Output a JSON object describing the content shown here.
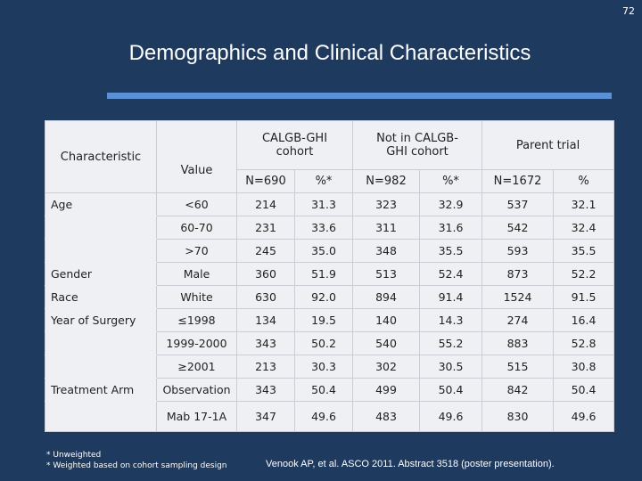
{
  "page_number": "72",
  "title": "Demographics and Clinical Characteristics",
  "table": {
    "headers": {
      "characteristic": "Characteristic",
      "value": "Value",
      "groups": [
        "CALGB-GHI cohort",
        "Not in CALGB-GHI cohort",
        "Parent trial"
      ],
      "subheaders": [
        "N=690",
        "%*",
        "N=982",
        "%*",
        "N=1672",
        "%"
      ]
    },
    "rows": [
      {
        "characteristic": "Age",
        "value": "<60",
        "cells": [
          "214",
          "31.3",
          "323",
          "32.9",
          "537",
          "32.1"
        ]
      },
      {
        "value": "60-70",
        "cells": [
          "231",
          "33.6",
          "311",
          "31.6",
          "542",
          "32.4"
        ]
      },
      {
        "value": ">70",
        "cells": [
          "245",
          "35.0",
          "348",
          "35.5",
          "593",
          "35.5"
        ]
      },
      {
        "characteristic": "Gender",
        "value": "Male",
        "cells": [
          "360",
          "51.9",
          "513",
          "52.4",
          "873",
          "52.2"
        ]
      },
      {
        "characteristic": "Race",
        "value": "White",
        "cells": [
          "630",
          "92.0",
          "894",
          "91.4",
          "1524",
          "91.5"
        ]
      },
      {
        "characteristic": "Year of Surgery",
        "value": "≤1998",
        "cells": [
          "134",
          "19.5",
          "140",
          "14.3",
          "274",
          "16.4"
        ]
      },
      {
        "value": "1999-2000",
        "cells": [
          "343",
          "50.2",
          "540",
          "55.2",
          "883",
          "52.8"
        ]
      },
      {
        "value": "≥2001",
        "cells": [
          "213",
          "30.3",
          "302",
          "30.5",
          "515",
          "30.8"
        ]
      },
      {
        "characteristic": "Treatment Arm",
        "value": "Observation",
        "cells": [
          "343",
          "50.4",
          "499",
          "50.4",
          "842",
          "50.4"
        ]
      },
      {
        "value": "Mab 17-1A",
        "cells": [
          "347",
          "49.6",
          "483",
          "49.6",
          "830",
          "49.6"
        ]
      }
    ]
  },
  "footnotes": [
    "* Unweighted",
    "* Weighted based on cohort sampling design"
  ],
  "citation": "Venook AP, et al. ASCO 2011. Abstract 3518 (poster presentation)."
}
